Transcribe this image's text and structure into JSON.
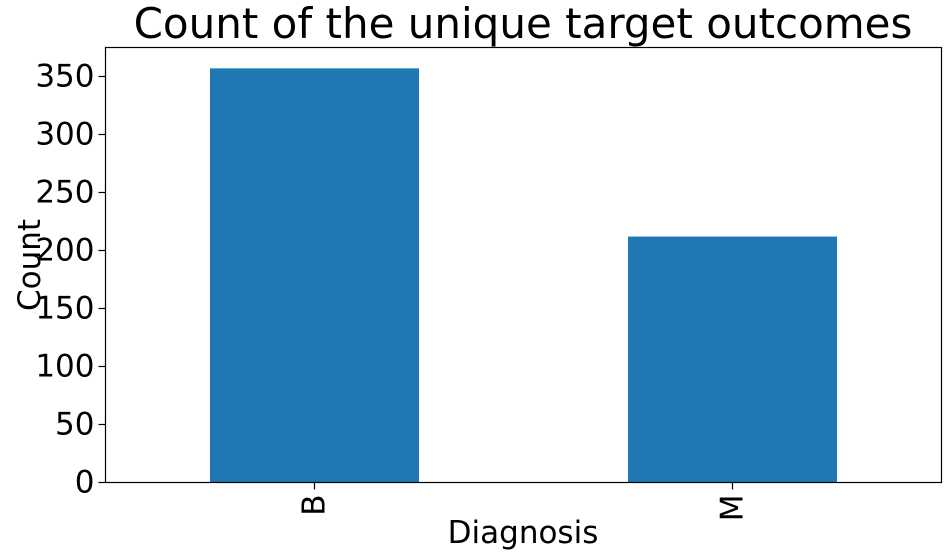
{
  "chart_data": {
    "type": "bar",
    "title": "Count of the unique target outcomes",
    "xlabel": "Diagnosis",
    "ylabel": "Count",
    "categories": [
      "B",
      "M"
    ],
    "values": [
      357,
      212
    ],
    "ylim": [
      0,
      375
    ],
    "yticks": [
      0,
      50,
      100,
      150,
      200,
      250,
      300,
      350
    ],
    "bar_color": "#1f77b4",
    "grid": false,
    "legend": "none"
  }
}
